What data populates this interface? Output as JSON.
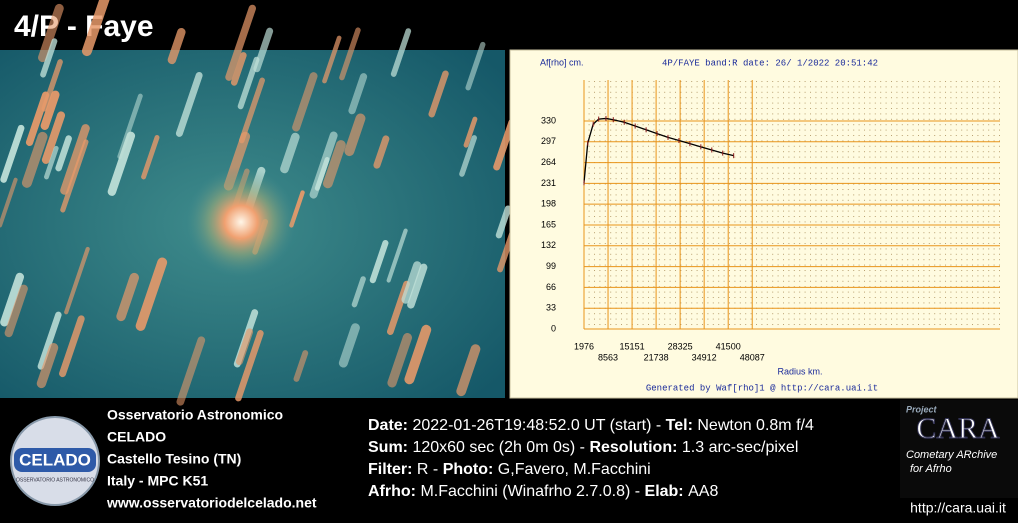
{
  "header": {
    "title": "4/P - Faye"
  },
  "chart_data": {
    "type": "line",
    "title": "4P/FAYE band:R date: 26/ 1/2022 20:51:42",
    "y_label": "Af[rho] cm.",
    "x_label": "Radius km.",
    "footer": "Generated by Waf[rho]1 @ http://cara.uai.it",
    "x": [
      1976,
      3000,
      4500,
      6000,
      8000,
      10000,
      13000,
      16000,
      19000,
      22000,
      25000,
      28000,
      31000,
      34000,
      37000,
      40000,
      43000
    ],
    "series": [
      {
        "name": "Af[rho]",
        "color": "#000000",
        "values": [
          232,
          295,
          325,
          333,
          334,
          332,
          328,
          322,
          316,
          310,
          304,
          299,
          294,
          289,
          284,
          279,
          275
        ],
        "errors": [
          4,
          4,
          4,
          4,
          4,
          4,
          4,
          4,
          4,
          4,
          4,
          4,
          4,
          4,
          4,
          4,
          4
        ],
        "error_color": "#8b1a1a"
      }
    ],
    "xlim": [
      1976,
      116000
    ],
    "xticks": [
      1976,
      8563,
      15151,
      21738,
      28325,
      34912,
      41500,
      48087
    ],
    "ylim": [
      0,
      395
    ],
    "yticks": [
      0,
      33,
      66,
      99,
      132,
      165,
      198,
      231,
      264,
      297,
      330
    ],
    "grid": true,
    "grid_color": "#e8941a"
  },
  "observatory": {
    "lines": [
      "Osservatorio Astronomico",
      "CELADO",
      "Castello Tesino (TN)",
      "Italy - MPC K51",
      "www.osservatoriodelcelado.net"
    ],
    "logo": {
      "name": "CELADO",
      "sub": "OSSERVATORIO ASTRONOMICO"
    }
  },
  "info": {
    "lines": [
      [
        {
          "label": "Date:",
          "value": "2022-01-26T19:48:52.0 UT (start) -"
        },
        {
          "label": "Tel:",
          "value": "Newton 0.8m f/4"
        }
      ],
      [
        {
          "label": "Sum:",
          "value": "120x60 sec (2h 0m 0s) -"
        },
        {
          "label": "Resolution:",
          "value": "1.3 arc-sec/pixel"
        }
      ],
      [
        {
          "label": "Filter:",
          "value": "R -"
        },
        {
          "label": "Photo:",
          "value": "G,Favero, M.Facchini"
        }
      ],
      [
        {
          "label": "Afrho:",
          "value": "M.Facchini (Winafrho 2.7.0.8) -"
        },
        {
          "label": "Elab:",
          "value": "AA8"
        }
      ]
    ]
  },
  "cara": {
    "project": "Project",
    "name": "CARA",
    "sub1": "Cometary ARchive",
    "sub2": "for Afrho",
    "url": "http://cara.uai.it"
  }
}
